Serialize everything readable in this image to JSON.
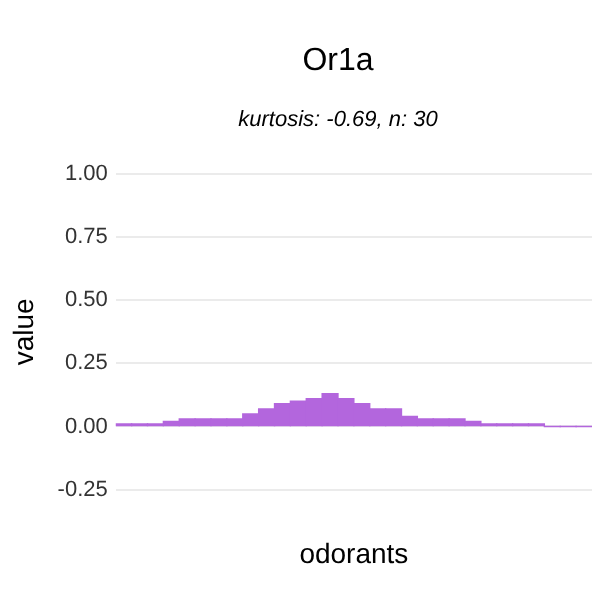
{
  "chart_data": {
    "type": "bar",
    "title": "Or1a",
    "subtitle": "kurtosis: -0.69, n: 30",
    "xlabel": "odorants",
    "ylabel": "value",
    "categories": [
      null,
      null,
      null,
      null,
      null,
      null,
      null,
      null,
      null,
      null,
      null,
      null,
      null,
      null,
      null,
      null,
      null,
      null,
      null,
      null,
      null,
      null,
      null,
      null,
      null,
      null,
      null,
      null,
      null,
      null
    ],
    "values": [
      0.01,
      0.01,
      0.01,
      0.02,
      0.03,
      0.03,
      0.03,
      0.03,
      0.05,
      0.07,
      0.09,
      0.1,
      0.11,
      0.13,
      0.11,
      0.09,
      0.07,
      0.07,
      0.04,
      0.03,
      0.03,
      0.03,
      0.02,
      0.01,
      0.01,
      0.01,
      0.01,
      0,
      0,
      0
    ],
    "color": "#b366dd",
    "ylim": [
      -0.25,
      1
    ],
    "yticks": [
      {
        "value": -0.25,
        "label": "-0.25"
      },
      {
        "value": 0,
        "label": "0.00"
      },
      {
        "value": 0.25,
        "label": "0.25"
      },
      {
        "value": 0.5,
        "label": "0.50"
      },
      {
        "value": 0.75,
        "label": "0.75"
      },
      {
        "value": 1,
        "label": "1.00"
      }
    ],
    "grid": "y"
  }
}
